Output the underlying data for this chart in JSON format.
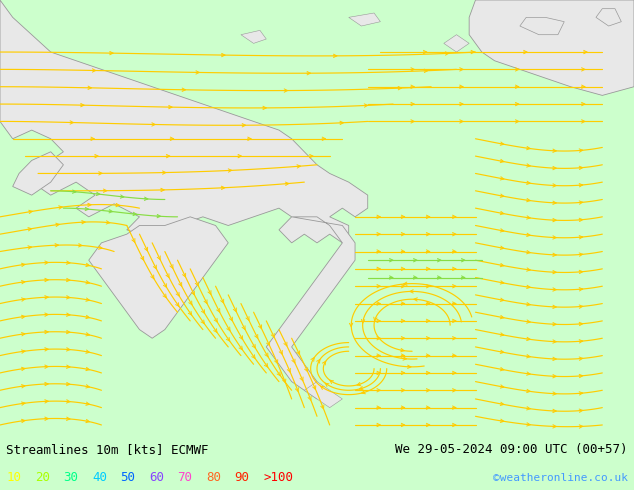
{
  "title_left": "Streamlines 10m [kts] ECMWF",
  "title_right": "We 29-05-2024 09:00 UTC (00+57)",
  "credit": "©weatheronline.co.uk",
  "bg_sea_color": "#ccffcc",
  "bg_land_color": "#e8e8e8",
  "border_color": "#999999",
  "streamline_color_yellow": "#ffcc00",
  "streamline_color_green": "#88cc44",
  "bottom_bg": "#ffffff",
  "title_color": "#000000",
  "credit_color": "#4499ff",
  "legend_colors": [
    "#ffff00",
    "#aaff00",
    "#00ff88",
    "#00ccff",
    "#0066ff",
    "#8800ff",
    "#ff00aa",
    "#ff4400",
    "#ff0000"
  ],
  "legend_labels": [
    "10",
    "20",
    "30",
    "40",
    "50",
    "60",
    "70",
    "80",
    "90",
    ">100"
  ],
  "font_size": 9,
  "font_family": "monospace"
}
